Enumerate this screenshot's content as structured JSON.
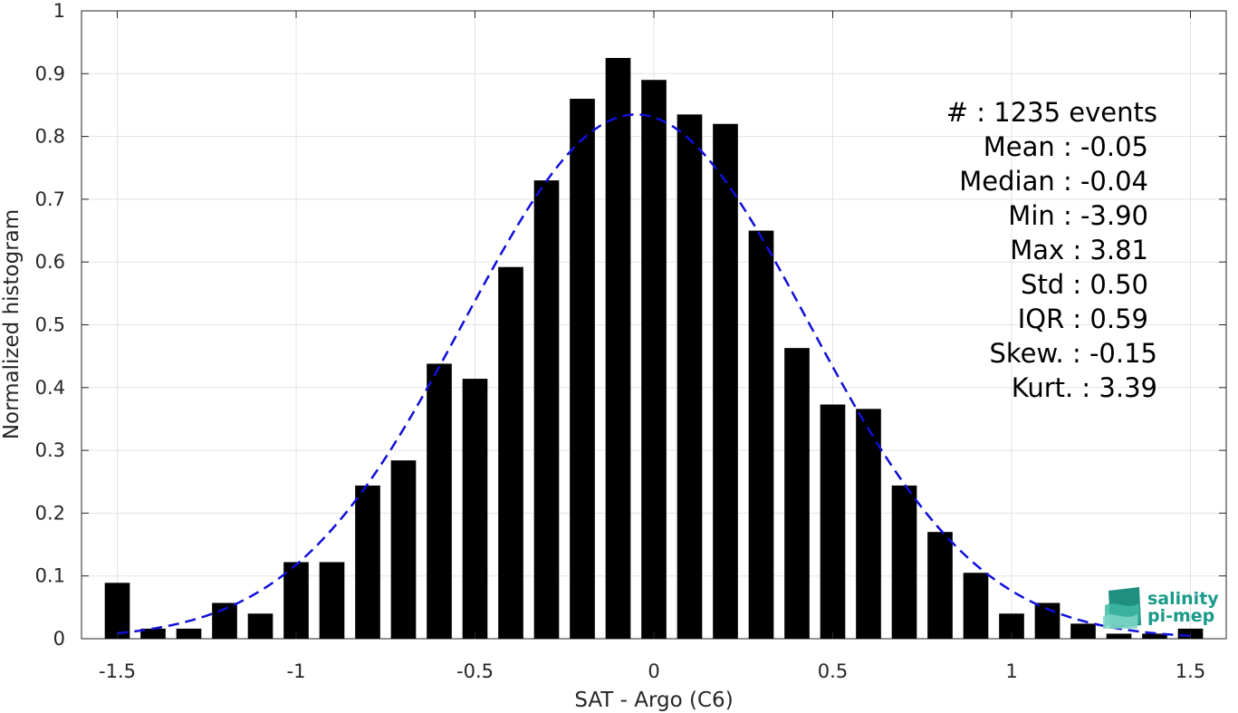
{
  "chart_data": {
    "type": "bar",
    "xlabel": "SAT - Argo (C6)",
    "ylabel": "Normalized histogram",
    "xlim": [
      -1.6,
      1.6
    ],
    "ylim": [
      0,
      1
    ],
    "grid": true,
    "x_ticks": [
      -1.5,
      -1,
      -0.5,
      0,
      0.5,
      1,
      1.5
    ],
    "x_tick_labels": [
      "-1.5",
      "-1",
      "-0.5",
      "0",
      "0.5",
      "1",
      "1.5"
    ],
    "y_ticks": [
      0,
      0.1,
      0.2,
      0.3,
      0.4,
      0.5,
      0.6,
      0.7,
      0.8,
      0.9,
      1
    ],
    "y_tick_labels": [
      "0",
      "0.1",
      "0.2",
      "0.3",
      "0.4",
      "0.5",
      "0.6",
      "0.7",
      "0.8",
      "0.9",
      "1"
    ],
    "bar_width": 0.07,
    "bar_color": "#000000",
    "bars": {
      "x": [
        -1.5,
        -1.4,
        -1.3,
        -1.2,
        -1.1,
        -1.0,
        -0.9,
        -0.8,
        -0.7,
        -0.6,
        -0.5,
        -0.4,
        -0.3,
        -0.2,
        -0.1,
        0.0,
        0.1,
        0.2,
        0.3,
        0.4,
        0.5,
        0.6,
        0.7,
        0.8,
        0.9,
        1.0,
        1.1,
        1.2,
        1.3,
        1.4,
        1.5
      ],
      "y": [
        0.089,
        0.016,
        0.016,
        0.057,
        0.04,
        0.122,
        0.122,
        0.244,
        0.284,
        0.438,
        0.414,
        0.592,
        0.73,
        0.86,
        0.925,
        0.89,
        0.835,
        0.82,
        0.65,
        0.463,
        0.373,
        0.366,
        0.244,
        0.17,
        0.105,
        0.04,
        0.057,
        0.024,
        0.008,
        0.008,
        0.016
      ]
    },
    "fit_curve": {
      "type": "gaussian",
      "style": "dashed",
      "color": "#1010d8",
      "mean": -0.05,
      "std": 0.48,
      "amplitude": 0.835,
      "x_range": [
        -1.5,
        1.5
      ]
    }
  },
  "stats_box": {
    "count": "#  : 1235 events",
    "mean": "Mean : -0.05",
    "median": "Median : -0.04",
    "min": "Min : -3.90",
    "max": "Max : 3.81",
    "std": "Std : 0.50",
    "iqr": "IQR : 0.59",
    "skew": "Skew. : -0.15",
    "kurt": "Kurt. : 3.39"
  },
  "logo": {
    "line1": "salinity",
    "line2": "pi-mep",
    "color": "#1a9a8a"
  }
}
